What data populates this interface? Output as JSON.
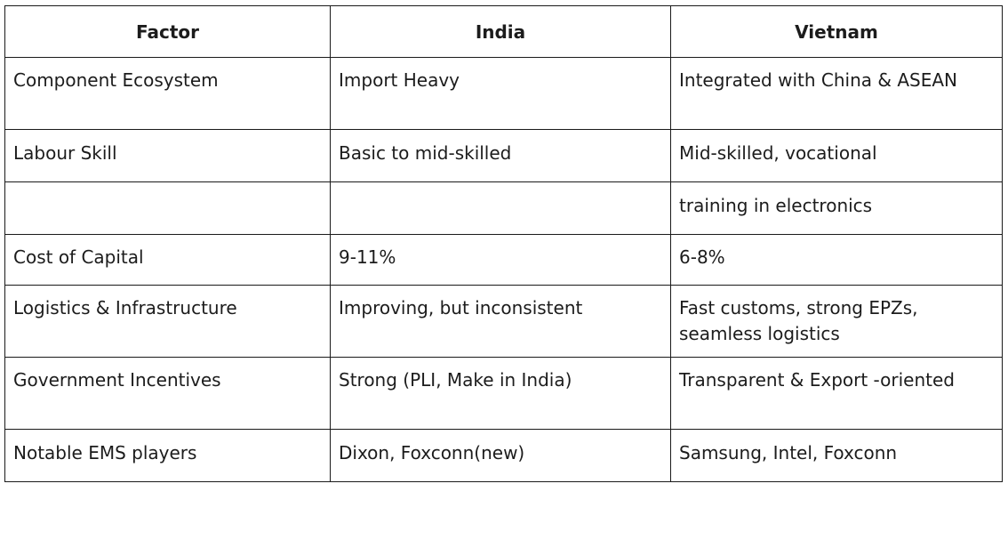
{
  "table": {
    "headers": [
      "Factor",
      "India",
      "Vietnam"
    ],
    "rows": [
      [
        "Component Ecosystem",
        "Import Heavy",
        "Integrated with China & ASEAN"
      ],
      [
        "Labour Skill",
        "Basic to mid-skilled",
        "Mid-skilled, vocational"
      ],
      [
        "",
        "",
        "training in electronics"
      ],
      [
        "Cost of Capital",
        "9-11%",
        "6-8%"
      ],
      [
        "Logistics & Infrastructure",
        "Improving, but inconsistent",
        "Fast customs, strong EPZs, seamless logistics"
      ],
      [
        "Government Incentives",
        "Strong (PLI, Make in India)",
        "Transparent & Export -oriented"
      ],
      [
        "Notable EMS players",
        "Dixon, Foxconn(new)",
        "Samsung, Intel, Foxconn"
      ]
    ]
  }
}
